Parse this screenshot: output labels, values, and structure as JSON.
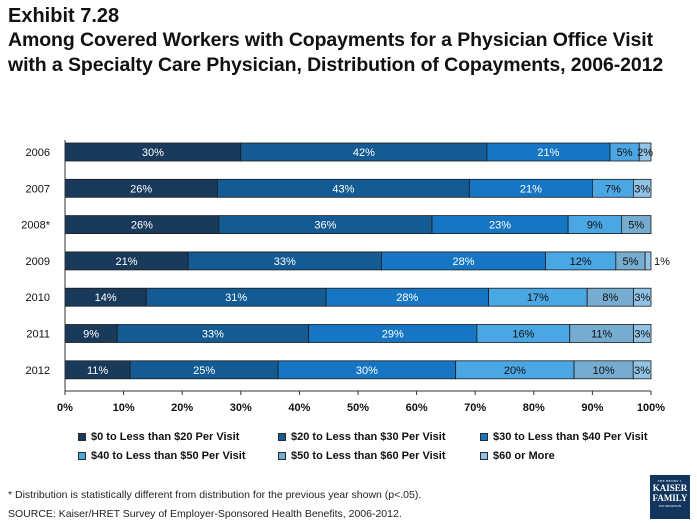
{
  "header": {
    "exhibit": "Exhibit 7.28",
    "title": "Among Covered Workers with Copayments for a Physician Office Visit with a Specialty Care Physician, Distribution of Copayments, 2006-2012"
  },
  "chart_data": {
    "type": "bar",
    "orientation": "horizontal",
    "stacked": true,
    "categories": [
      "2006",
      "2007",
      "2008*",
      "2009",
      "2010",
      "2011",
      "2012"
    ],
    "series": [
      {
        "name": "$0 to Less than $20 Per Visit",
        "color": "#1a3a5c",
        "values": [
          30,
          26,
          26,
          21,
          14,
          9,
          11
        ],
        "labels": [
          "30%",
          "26%",
          "26%",
          "21%",
          "14%",
          "9%",
          "11%"
        ]
      },
      {
        "name": "$20 to Less than $30 Per Visit",
        "color": "#135b92",
        "values": [
          42,
          43,
          36,
          33,
          31,
          33,
          25
        ],
        "labels": [
          "42%",
          "43%",
          "36%",
          "33%",
          "31%",
          "33%",
          "25%"
        ]
      },
      {
        "name": "$30 to Less than $40 Per Visit",
        "color": "#1776c4",
        "values": [
          21,
          21,
          23,
          28,
          28,
          29,
          30
        ],
        "labels": [
          "21%",
          "21%",
          "23%",
          "28%",
          "28%",
          "29%",
          "30%"
        ]
      },
      {
        "name": "$40 to Less than $50 Per Visit",
        "color": "#4ba6e4",
        "values": [
          5,
          7,
          9,
          12,
          17,
          16,
          20
        ],
        "labels": [
          "5%",
          "7%",
          "9%",
          "12%",
          "17%",
          "16%",
          "20%"
        ]
      },
      {
        "name": "$50 to Less than $60 Per Visit",
        "color": "#75acd0",
        "values": [
          0,
          0,
          5,
          5,
          8,
          11,
          10
        ],
        "labels": [
          "",
          "",
          "5%",
          "5%",
          "8%",
          "11%",
          "10%"
        ]
      },
      {
        "name": "$60 or More",
        "color": "#90c3e6",
        "values": [
          2,
          3,
          0,
          1,
          3,
          3,
          3
        ],
        "labels": [
          "2%",
          "3%",
          "",
          "1%",
          "3%",
          "3%",
          "3%"
        ]
      }
    ],
    "x_ticks": [
      "0%",
      "10%",
      "20%",
      "30%",
      "40%",
      "50%",
      "60%",
      "70%",
      "80%",
      "90%",
      "100%"
    ],
    "xlim": [
      0,
      100
    ],
    "legend_position": "bottom"
  },
  "footer": {
    "footnote": "* Distribution is statistically different from distribution for the previous year shown (p<.05).",
    "source": "SOURCE:  Kaiser/HRET Survey of Employer-Sponsored Health Benefits, 2006-2012."
  },
  "logo": {
    "line1": "THE HENRY J.",
    "line2": "KAISER",
    "line3": "FAMILY",
    "line4": "FOUNDATION"
  }
}
